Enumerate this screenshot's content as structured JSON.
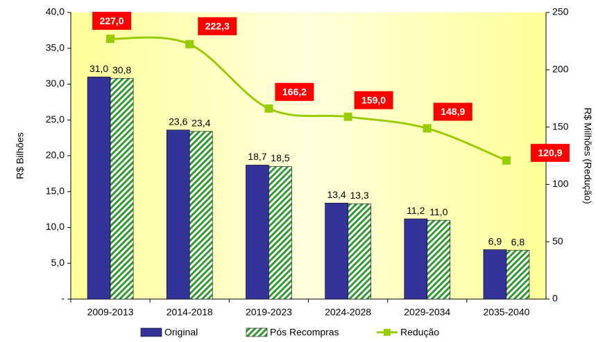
{
  "chart_data": {
    "type": "bar",
    "categories": [
      "2009-2013",
      "2014-2018",
      "2019-2023",
      "2024-2028",
      "2029-2034",
      "2035-2040"
    ],
    "y_label": "R$ Bilhões",
    "y2_label": "R$ Milhões (Redução)",
    "ylim": [
      0,
      40
    ],
    "yticks": [
      {
        "value": 0,
        "label": "-"
      },
      {
        "value": 5,
        "label": "5,0"
      },
      {
        "value": 10,
        "label": "10,0"
      },
      {
        "value": 15,
        "label": "15,0"
      },
      {
        "value": 20,
        "label": "20,0"
      },
      {
        "value": 25,
        "label": "25,0"
      },
      {
        "value": 30,
        "label": "30,0"
      },
      {
        "value": 35,
        "label": "35,0"
      },
      {
        "value": 40,
        "label": "40,0"
      }
    ],
    "y2lim": [
      0,
      250
    ],
    "y2ticks": [
      0,
      50,
      100,
      150,
      200,
      250
    ],
    "series": [
      {
        "name": "Original",
        "type": "bar",
        "color": "#333399",
        "values": [
          31.0,
          23.6,
          18.7,
          13.4,
          11.2,
          6.9
        ],
        "value_labels": [
          "31,0",
          "23,6",
          "18,7",
          "13,4",
          "11,2",
          "6,9"
        ]
      },
      {
        "name": "Pós Recompras",
        "type": "bar",
        "color": "#339933",
        "hatch": true,
        "values": [
          30.8,
          23.4,
          18.5,
          13.3,
          11.0,
          6.8
        ],
        "value_labels": [
          "30,8",
          "23,4",
          "18,5",
          "13,3",
          "11,0",
          "6,8"
        ]
      },
      {
        "name": "Redução",
        "type": "line",
        "axis": "y2",
        "color": "#99cc00",
        "values": [
          227.0,
          222.3,
          166.2,
          159.0,
          148.9,
          120.9
        ],
        "value_labels": [
          "227,0",
          "222,3",
          "166,2",
          "159,0",
          "148,9",
          "120,9"
        ]
      }
    ]
  }
}
